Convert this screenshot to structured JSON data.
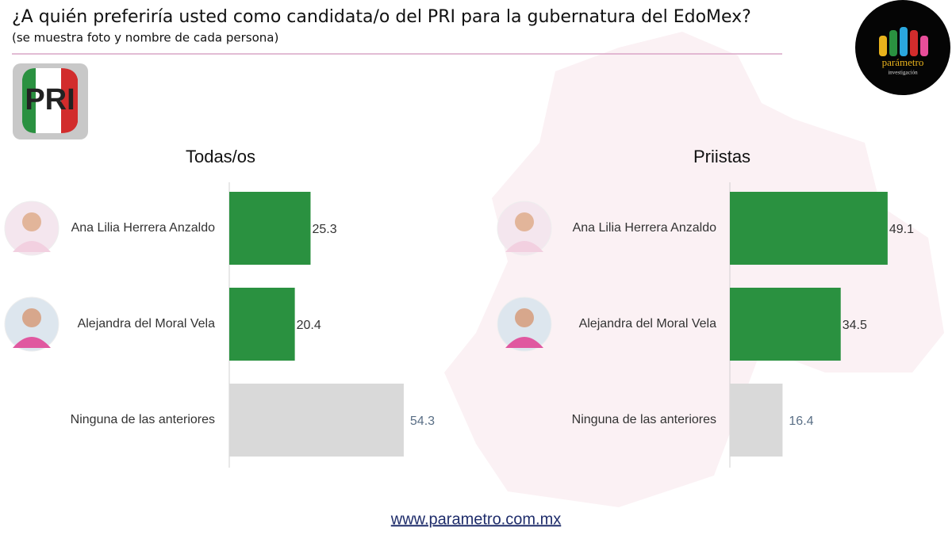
{
  "title": "¿A quién preferiría usted como candidata/o del PRI para la gubernatura del EdoMex?",
  "subtitle": "(se muestra foto y nombre de cada persona)",
  "party_logo": "PRI",
  "logo": {
    "name": "parámetro",
    "tagline": "investigación"
  },
  "footer": "www.parametro.com.mx",
  "chart_data": [
    {
      "type": "hbar",
      "title": "Todas/os",
      "categories": [
        "Ana Lilia Herrera Anzaldo",
        "Alejandra del Moral Vela",
        "Ninguna de las anteriores"
      ],
      "values": [
        25.3,
        20.4,
        54.3
      ],
      "colors": [
        "#2a9140",
        "#2a9140",
        "#d9d9d9"
      ]
    },
    {
      "type": "hbar",
      "title": "Priistas",
      "categories": [
        "Ana Lilia Herrera Anzaldo",
        "Alejandra del Moral Vela",
        "Ninguna de las anteriores"
      ],
      "values": [
        49.1,
        34.5,
        16.4
      ],
      "colors": [
        "#2a9140",
        "#2a9140",
        "#d9d9d9"
      ]
    }
  ]
}
